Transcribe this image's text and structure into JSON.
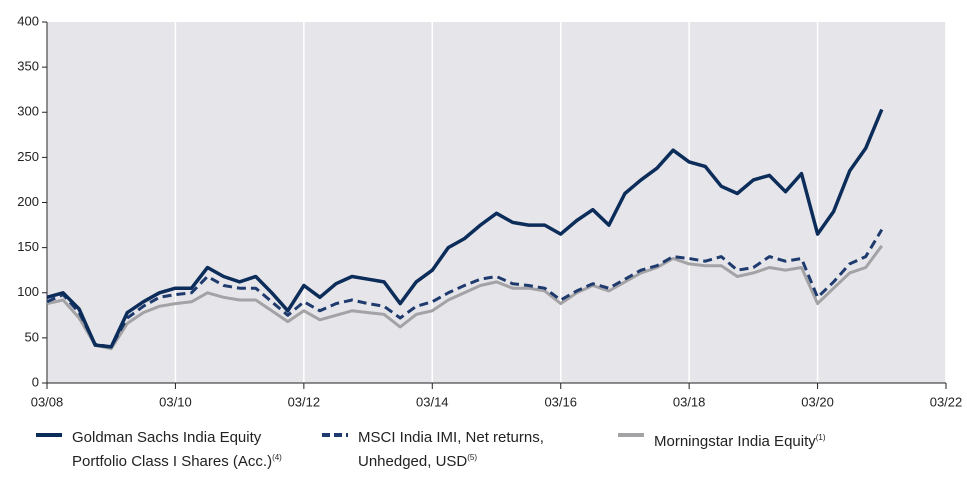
{
  "chart_data": {
    "type": "line",
    "x": [
      "2008-03",
      "2008-06",
      "2008-09",
      "2008-12",
      "2009-03",
      "2009-06",
      "2009-09",
      "2009-12",
      "2010-03",
      "2010-06",
      "2010-09",
      "2010-12",
      "2011-03",
      "2011-06",
      "2011-09",
      "2011-12",
      "2012-03",
      "2012-06",
      "2012-09",
      "2012-12",
      "2013-03",
      "2013-06",
      "2013-09",
      "2013-12",
      "2014-03",
      "2014-06",
      "2014-09",
      "2014-12",
      "2015-03",
      "2015-06",
      "2015-09",
      "2015-12",
      "2016-03",
      "2016-06",
      "2016-09",
      "2016-12",
      "2017-03",
      "2017-06",
      "2017-09",
      "2017-12",
      "2018-03",
      "2018-06",
      "2018-09",
      "2018-12",
      "2019-03",
      "2019-06",
      "2019-09",
      "2019-12",
      "2020-03",
      "2020-06",
      "2020-09",
      "2020-12",
      "2021-03"
    ],
    "series": [
      {
        "name": "Goldman Sachs India Equity Portfolio Class I Shares (Acc.)",
        "note": "(4)",
        "color": "#0c2c5a",
        "dash": false,
        "values": [
          95,
          100,
          82,
          42,
          40,
          78,
          90,
          100,
          105,
          105,
          128,
          118,
          112,
          118,
          100,
          80,
          108,
          95,
          110,
          118,
          115,
          112,
          88,
          112,
          125,
          150,
          160,
          175,
          188,
          178,
          175,
          175,
          165,
          180,
          192,
          175,
          210,
          225,
          238,
          258,
          245,
          240,
          218,
          210,
          225,
          230,
          212,
          232,
          165,
          190,
          235,
          260,
          303
        ]
      },
      {
        "name": "MSCI India IMI, Net returns, Unhedged, USD",
        "note": "(5)",
        "color": "#1f3b6e",
        "dash": true,
        "values": [
          90,
          98,
          78,
          43,
          40,
          72,
          85,
          95,
          98,
          100,
          118,
          108,
          105,
          105,
          90,
          75,
          90,
          80,
          88,
          92,
          88,
          85,
          72,
          85,
          90,
          100,
          108,
          115,
          118,
          110,
          108,
          105,
          92,
          102,
          110,
          105,
          115,
          125,
          130,
          140,
          138,
          135,
          140,
          125,
          128,
          140,
          135,
          138,
          95,
          112,
          132,
          140,
          170
        ]
      },
      {
        "name": "Morningstar India Equity",
        "note": "(1)",
        "color": "#a3a3a6",
        "dash": false,
        "values": [
          88,
          92,
          72,
          42,
          38,
          66,
          78,
          85,
          88,
          90,
          100,
          95,
          92,
          92,
          80,
          68,
          80,
          70,
          75,
          80,
          78,
          76,
          62,
          76,
          80,
          92,
          100,
          108,
          112,
          105,
          105,
          102,
          88,
          100,
          108,
          102,
          112,
          122,
          128,
          138,
          132,
          130,
          130,
          118,
          122,
          128,
          125,
          128,
          88,
          105,
          122,
          128,
          152
        ]
      }
    ],
    "xlim": [
      "2008-03",
      "2022-03"
    ],
    "xticks": [
      {
        "value": "2008-03",
        "label": "03/08"
      },
      {
        "value": "2010-03",
        "label": "03/10"
      },
      {
        "value": "2012-03",
        "label": "03/12"
      },
      {
        "value": "2014-03",
        "label": "03/14"
      },
      {
        "value": "2016-03",
        "label": "03/16"
      },
      {
        "value": "2018-03",
        "label": "03/18"
      },
      {
        "value": "2020-03",
        "label": "03/20"
      },
      {
        "value": "2022-03",
        "label": "03/22"
      }
    ],
    "ylim": [
      0,
      400
    ],
    "yticks": [
      0,
      50,
      100,
      150,
      200,
      250,
      300,
      350,
      400
    ],
    "grid": true
  }
}
